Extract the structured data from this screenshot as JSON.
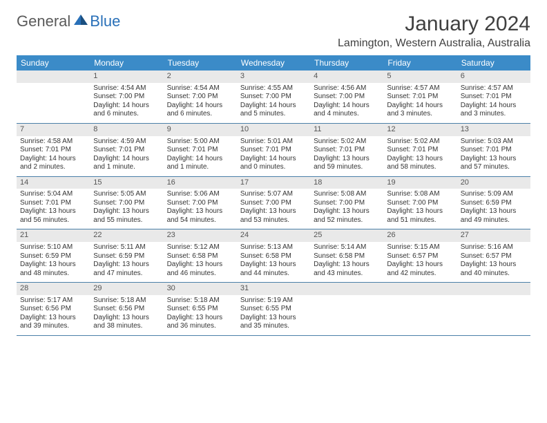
{
  "logo": {
    "general": "General",
    "blue": "Blue"
  },
  "title": "January 2024",
  "location": "Lamington, Western Australia, Australia",
  "colors": {
    "header_bg": "#3b8bc8",
    "header_text": "#ffffff",
    "daynum_bg": "#e9e9e9",
    "daynum_text": "#555555",
    "cell_text": "#333333",
    "row_border": "#4a7fa8",
    "title_text": "#404040",
    "logo_gray": "#5a5a5a",
    "logo_blue": "#2970b8"
  },
  "weekdays": [
    "Sunday",
    "Monday",
    "Tuesday",
    "Wednesday",
    "Thursday",
    "Friday",
    "Saturday"
  ],
  "weeks": [
    [
      null,
      {
        "n": "1",
        "sr": "Sunrise: 4:54 AM",
        "ss": "Sunset: 7:00 PM",
        "d1": "Daylight: 14 hours",
        "d2": "and 6 minutes."
      },
      {
        "n": "2",
        "sr": "Sunrise: 4:54 AM",
        "ss": "Sunset: 7:00 PM",
        "d1": "Daylight: 14 hours",
        "d2": "and 6 minutes."
      },
      {
        "n": "3",
        "sr": "Sunrise: 4:55 AM",
        "ss": "Sunset: 7:00 PM",
        "d1": "Daylight: 14 hours",
        "d2": "and 5 minutes."
      },
      {
        "n": "4",
        "sr": "Sunrise: 4:56 AM",
        "ss": "Sunset: 7:00 PM",
        "d1": "Daylight: 14 hours",
        "d2": "and 4 minutes."
      },
      {
        "n": "5",
        "sr": "Sunrise: 4:57 AM",
        "ss": "Sunset: 7:01 PM",
        "d1": "Daylight: 14 hours",
        "d2": "and 3 minutes."
      },
      {
        "n": "6",
        "sr": "Sunrise: 4:57 AM",
        "ss": "Sunset: 7:01 PM",
        "d1": "Daylight: 14 hours",
        "d2": "and 3 minutes."
      }
    ],
    [
      {
        "n": "7",
        "sr": "Sunrise: 4:58 AM",
        "ss": "Sunset: 7:01 PM",
        "d1": "Daylight: 14 hours",
        "d2": "and 2 minutes."
      },
      {
        "n": "8",
        "sr": "Sunrise: 4:59 AM",
        "ss": "Sunset: 7:01 PM",
        "d1": "Daylight: 14 hours",
        "d2": "and 1 minute."
      },
      {
        "n": "9",
        "sr": "Sunrise: 5:00 AM",
        "ss": "Sunset: 7:01 PM",
        "d1": "Daylight: 14 hours",
        "d2": "and 1 minute."
      },
      {
        "n": "10",
        "sr": "Sunrise: 5:01 AM",
        "ss": "Sunset: 7:01 PM",
        "d1": "Daylight: 14 hours",
        "d2": "and 0 minutes."
      },
      {
        "n": "11",
        "sr": "Sunrise: 5:02 AM",
        "ss": "Sunset: 7:01 PM",
        "d1": "Daylight: 13 hours",
        "d2": "and 59 minutes."
      },
      {
        "n": "12",
        "sr": "Sunrise: 5:02 AM",
        "ss": "Sunset: 7:01 PM",
        "d1": "Daylight: 13 hours",
        "d2": "and 58 minutes."
      },
      {
        "n": "13",
        "sr": "Sunrise: 5:03 AM",
        "ss": "Sunset: 7:01 PM",
        "d1": "Daylight: 13 hours",
        "d2": "and 57 minutes."
      }
    ],
    [
      {
        "n": "14",
        "sr": "Sunrise: 5:04 AM",
        "ss": "Sunset: 7:01 PM",
        "d1": "Daylight: 13 hours",
        "d2": "and 56 minutes."
      },
      {
        "n": "15",
        "sr": "Sunrise: 5:05 AM",
        "ss": "Sunset: 7:00 PM",
        "d1": "Daylight: 13 hours",
        "d2": "and 55 minutes."
      },
      {
        "n": "16",
        "sr": "Sunrise: 5:06 AM",
        "ss": "Sunset: 7:00 PM",
        "d1": "Daylight: 13 hours",
        "d2": "and 54 minutes."
      },
      {
        "n": "17",
        "sr": "Sunrise: 5:07 AM",
        "ss": "Sunset: 7:00 PM",
        "d1": "Daylight: 13 hours",
        "d2": "and 53 minutes."
      },
      {
        "n": "18",
        "sr": "Sunrise: 5:08 AM",
        "ss": "Sunset: 7:00 PM",
        "d1": "Daylight: 13 hours",
        "d2": "and 52 minutes."
      },
      {
        "n": "19",
        "sr": "Sunrise: 5:08 AM",
        "ss": "Sunset: 7:00 PM",
        "d1": "Daylight: 13 hours",
        "d2": "and 51 minutes."
      },
      {
        "n": "20",
        "sr": "Sunrise: 5:09 AM",
        "ss": "Sunset: 6:59 PM",
        "d1": "Daylight: 13 hours",
        "d2": "and 49 minutes."
      }
    ],
    [
      {
        "n": "21",
        "sr": "Sunrise: 5:10 AM",
        "ss": "Sunset: 6:59 PM",
        "d1": "Daylight: 13 hours",
        "d2": "and 48 minutes."
      },
      {
        "n": "22",
        "sr": "Sunrise: 5:11 AM",
        "ss": "Sunset: 6:59 PM",
        "d1": "Daylight: 13 hours",
        "d2": "and 47 minutes."
      },
      {
        "n": "23",
        "sr": "Sunrise: 5:12 AM",
        "ss": "Sunset: 6:58 PM",
        "d1": "Daylight: 13 hours",
        "d2": "and 46 minutes."
      },
      {
        "n": "24",
        "sr": "Sunrise: 5:13 AM",
        "ss": "Sunset: 6:58 PM",
        "d1": "Daylight: 13 hours",
        "d2": "and 44 minutes."
      },
      {
        "n": "25",
        "sr": "Sunrise: 5:14 AM",
        "ss": "Sunset: 6:58 PM",
        "d1": "Daylight: 13 hours",
        "d2": "and 43 minutes."
      },
      {
        "n": "26",
        "sr": "Sunrise: 5:15 AM",
        "ss": "Sunset: 6:57 PM",
        "d1": "Daylight: 13 hours",
        "d2": "and 42 minutes."
      },
      {
        "n": "27",
        "sr": "Sunrise: 5:16 AM",
        "ss": "Sunset: 6:57 PM",
        "d1": "Daylight: 13 hours",
        "d2": "and 40 minutes."
      }
    ],
    [
      {
        "n": "28",
        "sr": "Sunrise: 5:17 AM",
        "ss": "Sunset: 6:56 PM",
        "d1": "Daylight: 13 hours",
        "d2": "and 39 minutes."
      },
      {
        "n": "29",
        "sr": "Sunrise: 5:18 AM",
        "ss": "Sunset: 6:56 PM",
        "d1": "Daylight: 13 hours",
        "d2": "and 38 minutes."
      },
      {
        "n": "30",
        "sr": "Sunrise: 5:18 AM",
        "ss": "Sunset: 6:55 PM",
        "d1": "Daylight: 13 hours",
        "d2": "and 36 minutes."
      },
      {
        "n": "31",
        "sr": "Sunrise: 5:19 AM",
        "ss": "Sunset: 6:55 PM",
        "d1": "Daylight: 13 hours",
        "d2": "and 35 minutes."
      },
      null,
      null,
      null
    ]
  ]
}
